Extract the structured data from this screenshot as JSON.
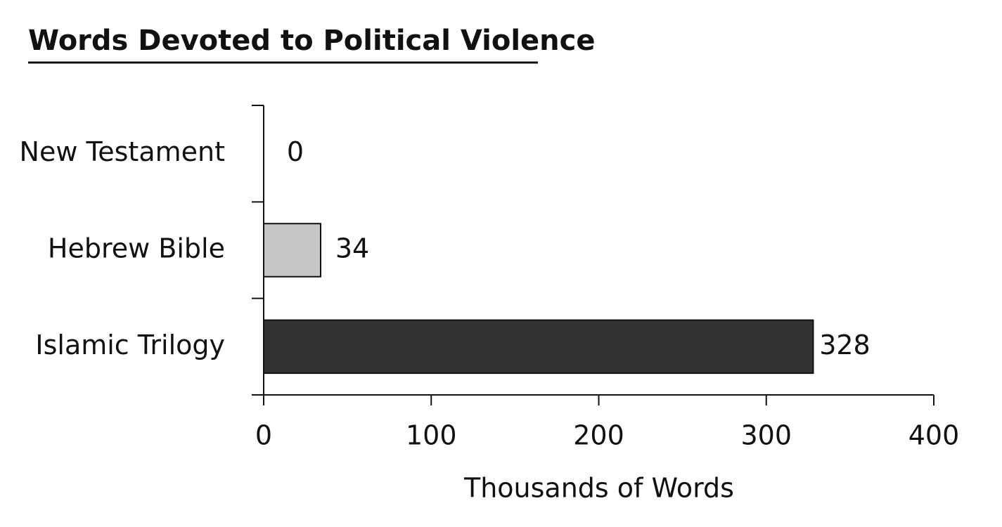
{
  "chart_data": {
    "type": "bar",
    "orientation": "horizontal",
    "title": "Words Devoted to Political Violence",
    "categories": [
      "New Testament",
      "Hebrew Bible",
      "Islamic Trilogy"
    ],
    "values": [
      0,
      34,
      328
    ],
    "colors": [
      "#ffffff",
      "#c6c6c6",
      "#333333"
    ],
    "xlim": [
      0,
      400
    ],
    "xticks": [
      0,
      100,
      200,
      300,
      400
    ],
    "xlabel": "Thousands of Words",
    "grid": false
  }
}
